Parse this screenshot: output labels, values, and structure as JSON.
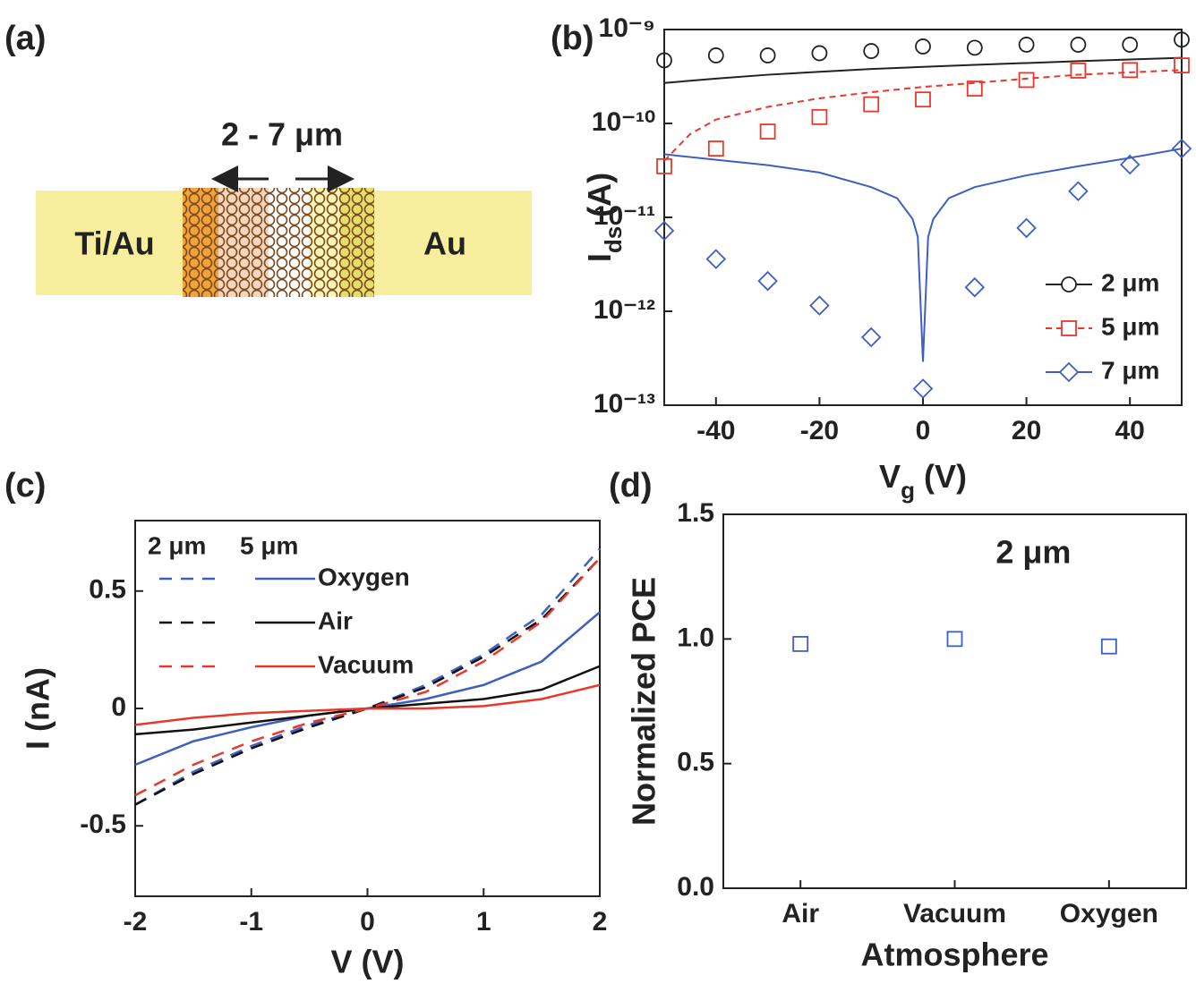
{
  "diagram": {
    "panel_label": "(a)",
    "length_label": "2 - 7 μm",
    "left_label": "Ti/Au",
    "right_label": "Au"
  },
  "chart_data": [
    {
      "type": "scatter",
      "panel_label": "(b)",
      "log_y": true,
      "x_label": {
        "main": "V",
        "sub": "g",
        "unit": "(V)"
      },
      "y_label": {
        "main": "I",
        "sub": "ds",
        "unit": "(A)"
      },
      "xlim": [
        -50,
        50
      ],
      "xticks": [
        -40,
        -20,
        0,
        20,
        40
      ],
      "ylim": [
        1e-13,
        1e-09
      ],
      "yticks": [
        {
          "value": 1e-13,
          "label": "10⁻¹³"
        },
        {
          "value": 1e-12,
          "label": "10⁻¹²"
        },
        {
          "value": 1e-11,
          "label": "10⁻¹¹"
        },
        {
          "value": 1e-10,
          "label": "10⁻¹⁰"
        },
        {
          "value": 1e-09,
          "label": "10⁻⁹"
        }
      ],
      "legend_loc": "lower right",
      "series": [
        {
          "name": "2 μm",
          "color": "#222222",
          "marker": "circle",
          "fit_dash": false,
          "x": [
            -50,
            -40,
            -30,
            -20,
            -10,
            0,
            10,
            20,
            30,
            40,
            50
          ],
          "values": [
            4.7e-10,
            5.3e-10,
            5.3e-10,
            5.6e-10,
            5.9e-10,
            6.6e-10,
            6.4e-10,
            6.9e-10,
            6.9e-10,
            6.9e-10,
            7.8e-10
          ],
          "fit_x": [
            -50,
            -40,
            -30,
            -20,
            -10,
            0,
            10,
            20,
            30,
            40,
            50
          ],
          "fit_values": [
            2.7e-10,
            3e-10,
            3.3e-10,
            3.55e-10,
            3.8e-10,
            4e-10,
            4.2e-10,
            4.4e-10,
            4.6e-10,
            4.8e-10,
            5e-10
          ]
        },
        {
          "name": "5 μm",
          "color": "#e8382c",
          "marker": "square",
          "fit_dash": true,
          "x": [
            -50,
            -40,
            -30,
            -20,
            -10,
            0,
            10,
            20,
            30,
            40,
            50
          ],
          "values": [
            3.5e-11,
            5.4e-11,
            8.2e-11,
            1.17e-10,
            1.6e-10,
            1.8e-10,
            2.35e-10,
            2.9e-10,
            3.65e-10,
            3.7e-10,
            4.15e-10
          ],
          "fit_x": [
            -50,
            -45,
            -40,
            -30,
            -20,
            -10,
            0,
            10,
            20,
            30,
            40,
            50
          ],
          "fit_values": [
            4e-11,
            7.7e-11,
            1.1e-10,
            1.5e-10,
            1.85e-10,
            2.15e-10,
            2.45e-10,
            2.7e-10,
            3e-10,
            3.3e-10,
            3.5e-10,
            3.7e-10
          ]
        },
        {
          "name": "7 μm",
          "color": "#3f5fbf",
          "marker": "diamond",
          "fit_dash": false,
          "x": [
            -50,
            -40,
            -30,
            -20,
            -10,
            0,
            10,
            20,
            30,
            40,
            50
          ],
          "values": [
            7.2e-12,
            3.6e-12,
            2.1e-12,
            1.15e-12,
            5.3e-13,
            1.5e-13,
            1.8e-12,
            7.7e-12,
            1.9e-11,
            3.65e-11,
            5.4e-11
          ],
          "fit_x": [
            -50,
            -40,
            -30,
            -20,
            -10,
            -5,
            -2,
            -1,
            0,
            1,
            2,
            5,
            10,
            20,
            30,
            40,
            50
          ],
          "fit_values": [
            4.7e-11,
            4.1e-11,
            3.6e-11,
            3e-11,
            2.1e-11,
            1.6e-11,
            9.6e-12,
            6.2e-12,
            2.9e-13,
            6.2e-12,
            9.6e-12,
            1.6e-11,
            2.1e-11,
            2.8e-11,
            3.5e-11,
            4.3e-11,
            5.4e-11
          ]
        }
      ]
    },
    {
      "type": "line",
      "panel_label": "(c)",
      "x_label": "V (V)",
      "y_label": "I (nA)",
      "xlim": [
        -2,
        2
      ],
      "xticks": [
        -2,
        -1,
        0,
        1,
        2
      ],
      "ylim": [
        -0.8,
        0.8
      ],
      "yticks": [
        -0.5,
        0,
        0.5
      ],
      "legend_loc": "upper left",
      "groups": [
        {
          "name": "2 μm",
          "dashed": true
        },
        {
          "name": "5 μm",
          "dashed": false
        }
      ],
      "x": [
        -2,
        -1.5,
        -1,
        -0.5,
        0,
        0.5,
        1,
        1.5,
        2
      ],
      "series": [
        {
          "name": "Oxygen",
          "color": "#3f5fbf",
          "values": [
            [
              -0.41,
              -0.27,
              -0.16,
              -0.07,
              0,
              0.1,
              0.23,
              0.4,
              0.68
            ],
            [
              -0.24,
              -0.14,
              -0.08,
              -0.03,
              0,
              0.04,
              0.1,
              0.2,
              0.41
            ]
          ]
        },
        {
          "name": "Air",
          "color": "#111111",
          "values": [
            [
              -0.41,
              -0.28,
              -0.17,
              -0.08,
              0,
              0.09,
              0.22,
              0.38,
              0.64
            ],
            [
              -0.11,
              -0.09,
              -0.06,
              -0.03,
              0,
              0.02,
              0.04,
              0.08,
              0.18
            ]
          ]
        },
        {
          "name": "Vacuum",
          "color": "#e8382c",
          "values": [
            [
              -0.37,
              -0.24,
              -0.14,
              -0.06,
              0,
              0.07,
              0.2,
              0.37,
              0.64
            ],
            [
              -0.07,
              -0.04,
              -0.02,
              -0.01,
              0,
              0,
              0.01,
              0.04,
              0.1
            ]
          ]
        }
      ]
    },
    {
      "type": "scatter",
      "panel_label": "(d)",
      "x_label": "Atmosphere",
      "y_label": "Normalized PCE",
      "annotation": "2 μm",
      "categories": [
        "Air",
        "Vacuum",
        "Oxygen"
      ],
      "values": [
        0.98,
        1.0,
        0.97
      ],
      "color": "#3f5fbf",
      "marker": "square",
      "ylim": [
        0,
        1.5
      ],
      "yticks": [
        {
          "value": 0,
          "label": "0.0"
        },
        {
          "value": 0.5,
          "label": "0.5"
        },
        {
          "value": 1,
          "label": "1.0"
        },
        {
          "value": 1.5,
          "label": "1.5"
        }
      ]
    }
  ]
}
